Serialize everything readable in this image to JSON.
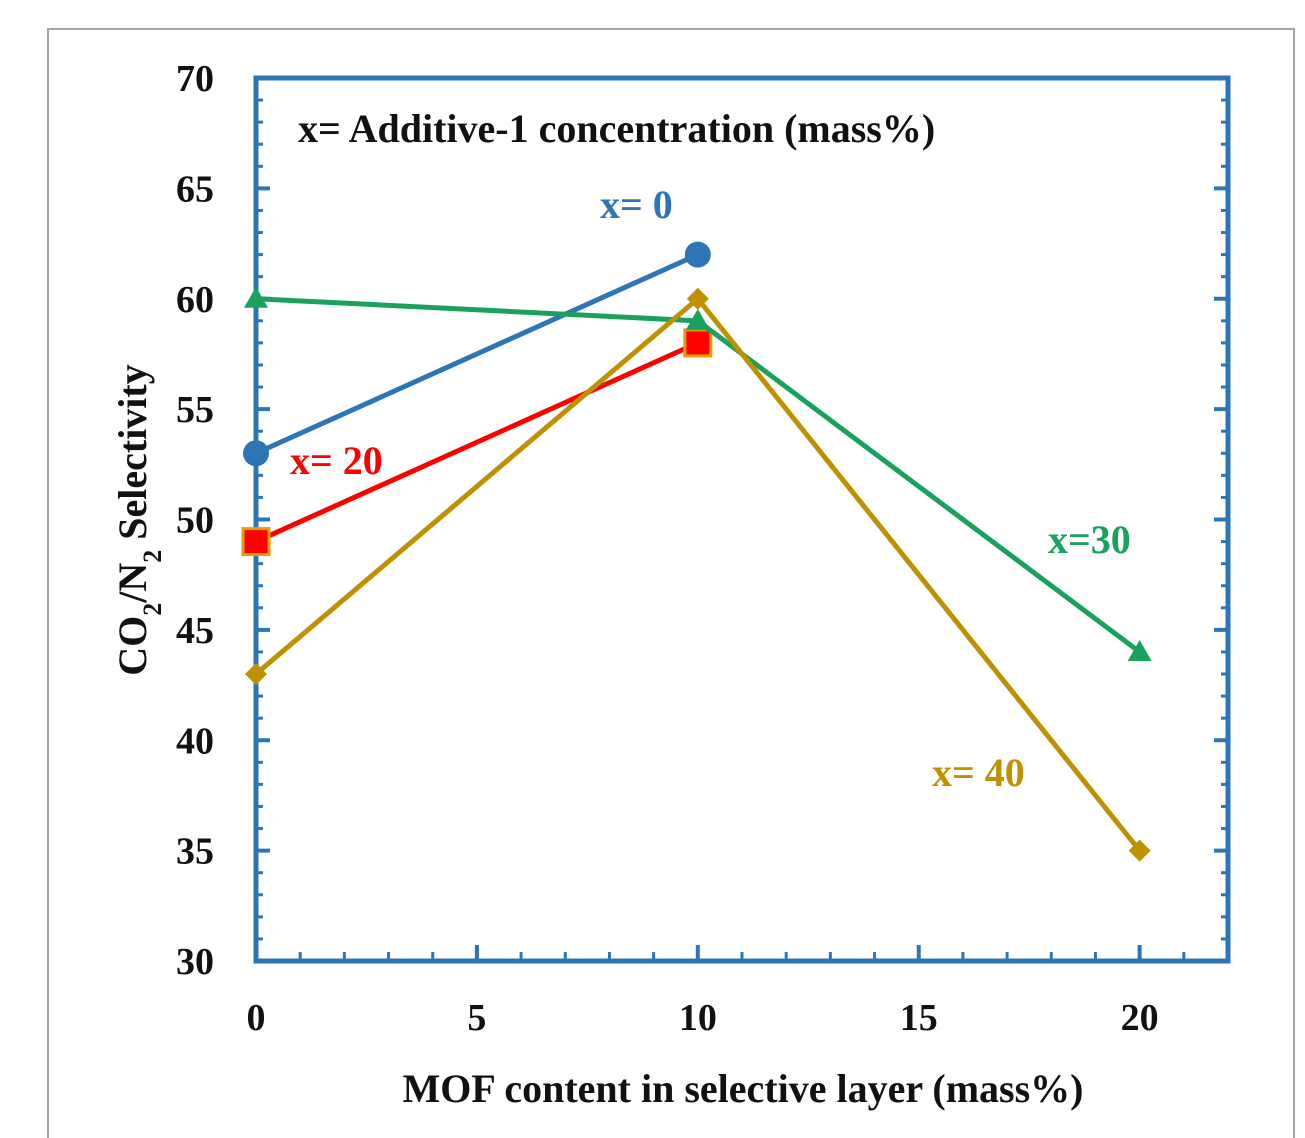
{
  "chart_data": {
    "type": "line",
    "xlabel": "MOF content in selective layer (mass%)",
    "ylabel": {
      "p1": "CO",
      "s1": "2",
      "p2": "/N",
      "s2": "2",
      "p3": " Selectivity"
    },
    "xlim": [
      0,
      22
    ],
    "ylim": [
      30,
      70
    ],
    "x_ticks": [
      0,
      5,
      10,
      15,
      20
    ],
    "y_ticks": [
      30,
      35,
      40,
      45,
      50,
      55,
      60,
      65,
      70
    ],
    "grid": false,
    "legend": "none",
    "annotations": {
      "header": "x= Additive-1 concentration (mass%)",
      "x0": "x= 0",
      "x20": "x= 20",
      "x30": "x=30",
      "x40": "x= 40"
    },
    "series": [
      {
        "label_key": "x0",
        "color": "#2e75b6",
        "marker": "circle",
        "x": [
          0,
          10
        ],
        "y": [
          53,
          62
        ]
      },
      {
        "label_key": "x20",
        "color": "#ff0000",
        "marker": "square",
        "x": [
          0,
          10
        ],
        "y": [
          49,
          58
        ]
      },
      {
        "label_key": "x30",
        "color": "#1aa15e",
        "marker": "triangle",
        "x": [
          0,
          10,
          20
        ],
        "y": [
          60,
          59,
          44
        ]
      },
      {
        "label_key": "x40",
        "color": "#bf9000",
        "marker": "diamond",
        "x": [
          0,
          10,
          20
        ],
        "y": [
          43,
          60,
          35
        ]
      }
    ],
    "plot_border_color": "#2e75b6"
  }
}
